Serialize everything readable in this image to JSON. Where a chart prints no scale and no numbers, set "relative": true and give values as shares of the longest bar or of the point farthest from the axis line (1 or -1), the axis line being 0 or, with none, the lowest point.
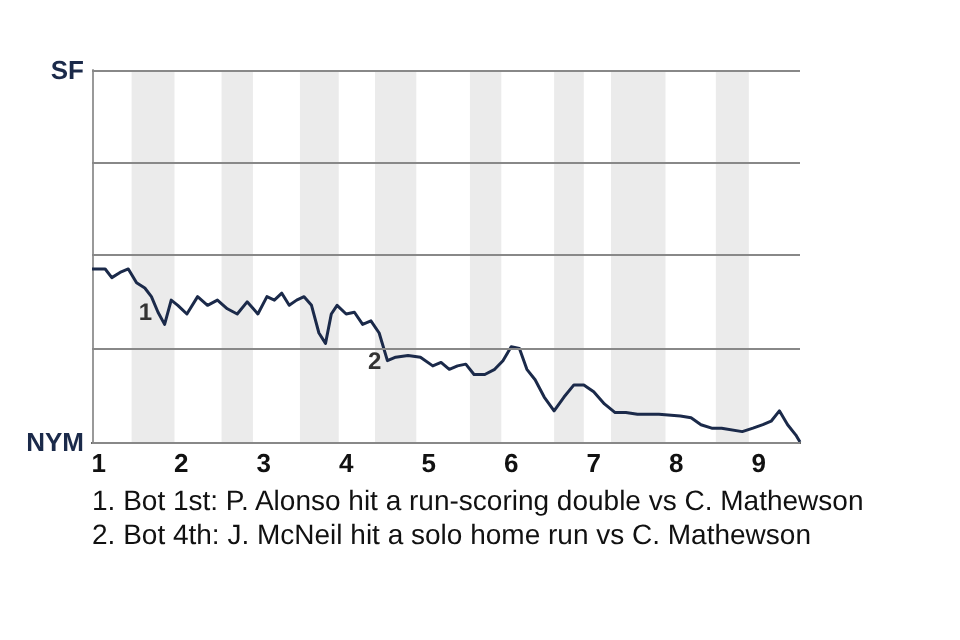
{
  "chart_data": {
    "type": "line",
    "relative": true,
    "x": [
      0.92,
      1.08,
      1.16,
      1.26,
      1.36,
      1.46,
      1.56,
      1.64,
      1.72,
      1.8,
      1.88,
      1.96,
      2.07,
      2.2,
      2.32,
      2.44,
      2.56,
      2.68,
      2.8,
      2.93,
      3.04,
      3.13,
      3.22,
      3.31,
      3.4,
      3.49,
      3.58,
      3.67,
      3.75,
      3.82,
      3.89,
      4,
      4.1,
      4.2,
      4.3,
      4.4,
      4.5,
      4.6,
      4.75,
      4.9,
      5.05,
      5.15,
      5.25,
      5.35,
      5.45,
      5.55,
      5.68,
      5.8,
      5.9,
      6,
      6.1,
      6.19,
      6.29,
      6.4,
      6.52,
      6.64,
      6.76,
      6.88,
      7,
      7.13,
      7.26,
      7.39,
      7.53,
      7.79,
      8.05,
      8.18,
      8.3,
      8.43,
      8.55,
      8.8,
      8.93,
      9.05,
      9.15,
      9.25,
      9.35,
      9.45,
      9.5
    ],
    "series": [
      {
        "color": "#1b2a4a",
        "values": [
          1,
          1,
          0.95,
          0.98,
          1,
          0.92,
          0.89,
          0.84,
          0.75,
          0.68,
          0.82,
          0.79,
          0.74,
          0.84,
          0.79,
          0.82,
          0.77,
          0.74,
          0.81,
          0.74,
          0.84,
          0.82,
          0.86,
          0.79,
          0.82,
          0.84,
          0.79,
          0.63,
          0.57,
          0.74,
          0.79,
          0.74,
          0.75,
          0.68,
          0.7,
          0.63,
          0.47,
          0.49,
          0.5,
          0.49,
          0.44,
          0.46,
          0.42,
          0.44,
          0.45,
          0.39,
          0.39,
          0.42,
          0.47,
          0.55,
          0.54,
          0.42,
          0.36,
          0.26,
          0.18,
          0.26,
          0.33,
          0.33,
          0.29,
          0.22,
          0.17,
          0.17,
          0.16,
          0.16,
          0.15,
          0.14,
          0.1,
          0.08,
          0.08,
          0.06,
          0.08,
          0.1,
          0.12,
          0.18,
          0.1,
          0.04,
          0
        ]
      }
    ],
    "xlim": [
      0.92,
      9.5
    ],
    "xticks": [
      1,
      2,
      3,
      4,
      5,
      6,
      7,
      8,
      9
    ],
    "marker": "none",
    "line_style": "solid",
    "ref_lines": [
      {
        "axis": "y",
        "value": 0,
        "label": "NYM"
      },
      {
        "axis": "y",
        "value": 0.54,
        "label": null
      },
      {
        "axis": "y",
        "value": 1.08,
        "label": null
      },
      {
        "axis": "y",
        "value": 1.61,
        "label": null
      },
      {
        "axis": "y",
        "value": 2.15,
        "label": "SF"
      }
    ],
    "bands": [
      {
        "axis": "x",
        "from": 1.4,
        "to": 1.92,
        "color": "#ebebeb"
      },
      {
        "axis": "x",
        "from": 2.49,
        "to": 2.87,
        "color": "#ebebeb"
      },
      {
        "axis": "x",
        "from": 3.44,
        "to": 3.91,
        "color": "#ebebeb"
      },
      {
        "axis": "x",
        "from": 4.35,
        "to": 4.85,
        "color": "#ebebeb"
      },
      {
        "axis": "x",
        "from": 5.5,
        "to": 5.88,
        "color": "#ebebeb"
      },
      {
        "axis": "x",
        "from": 6.52,
        "to": 6.88,
        "color": "#ebebeb"
      },
      {
        "axis": "x",
        "from": 7.21,
        "to": 7.87,
        "color": "#ebebeb"
      },
      {
        "axis": "x",
        "from": 8.48,
        "to": 8.88,
        "color": "#ebebeb"
      }
    ],
    "annotations": [
      {
        "text": "1",
        "x": 1.72,
        "y": 0.75
      },
      {
        "text": "2",
        "x": 4.5,
        "y": 0.47
      },
      "1. Bot 1st: P. Alonso hit a run-scoring double vs C. Mathewson",
      "2. Bot 4th: J. McNeil hit a solo home run vs C. Mathewson"
    ]
  }
}
